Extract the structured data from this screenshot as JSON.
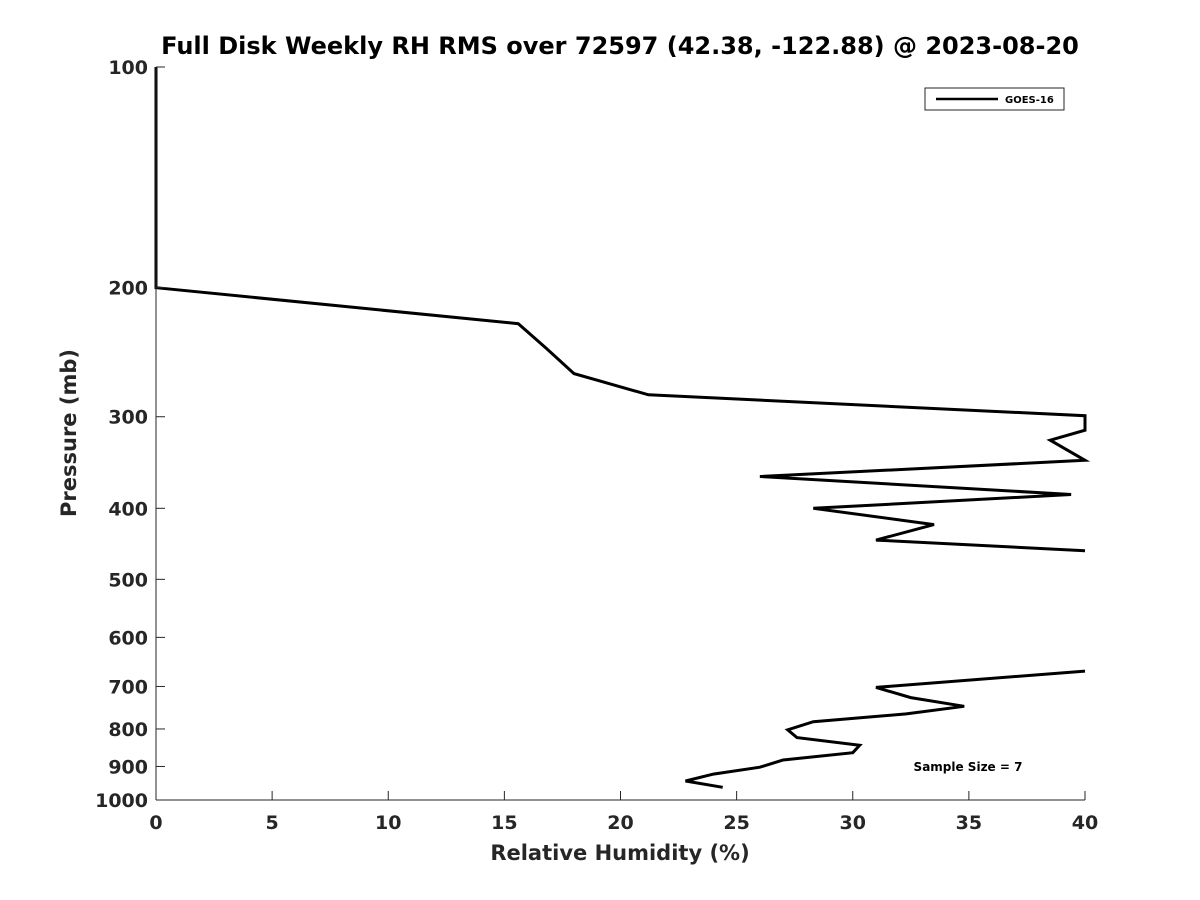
{
  "chart_data": {
    "type": "line",
    "title": "Full Disk Weekly RH RMS over 72597 (42.38, -122.88) @ 2023-08-20",
    "xlabel": "Relative Humidity (%)",
    "ylabel": "Pressure (mb)",
    "xlim": [
      0,
      40
    ],
    "ylim": [
      100,
      1000
    ],
    "y_scale": "log",
    "y_reversed": true,
    "x_ticks": [
      "0",
      "5",
      "10",
      "15",
      "20",
      "25",
      "30",
      "35",
      "40"
    ],
    "y_ticks": [
      "100",
      "200",
      "300",
      "400",
      "500",
      "600",
      "700",
      "800",
      "900",
      "1000"
    ],
    "grid": false,
    "legend_position": "top-right",
    "series": [
      {
        "name": "GOES-16",
        "color": "#000000",
        "segments": [
          [
            [
              0,
              100
            ],
            [
              0,
              150
            ],
            [
              0,
              200
            ],
            [
              15.6,
              224
            ],
            [
              16.8,
              242
            ],
            [
              18.0,
              262
            ],
            [
              21.2,
              280
            ],
            [
              40,
              299
            ],
            [
              40,
              313
            ],
            [
              38.5,
              323
            ],
            [
              40,
              344
            ],
            [
              26.0,
              362
            ],
            [
              39.4,
              383
            ],
            [
              28.3,
              400
            ],
            [
              33.5,
              421
            ],
            [
              31.0,
              442
            ],
            [
              40,
              457
            ]
          ],
          [
            [
              40,
              667
            ],
            [
              31.0,
              702
            ],
            [
              32.5,
              725
            ],
            [
              34.8,
              745
            ],
            [
              32.3,
              763
            ],
            [
              28.3,
              782
            ],
            [
              27.2,
              802
            ],
            [
              27.6,
              822
            ],
            [
              30.3,
              842
            ],
            [
              30.0,
              862
            ],
            [
              27.0,
              882
            ],
            [
              26.0,
              902
            ],
            [
              24.0,
              922
            ],
            [
              22.8,
              942
            ],
            [
              24.4,
              961
            ]
          ]
        ]
      }
    ],
    "annotations": [
      "Sample Size = 7"
    ]
  }
}
